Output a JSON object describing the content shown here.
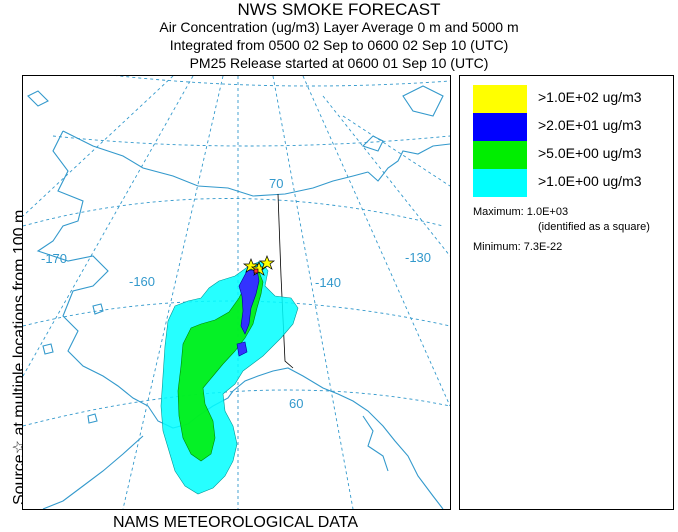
{
  "header": {
    "title": "NWS SMOKE FORECAST",
    "line2": "Air Concentration (ug/m3) Layer Average    0 m and  5000 m",
    "line3": "Integrated from 0500 02 Sep to 0600 02 Sep 10 (UTC)",
    "line4": "PM25 Release started at 0600 01 Sep 10 (UTC)"
  },
  "side_label": "Source☆ at multiple locations    from   100 m",
  "footer": "NAMS METEOROLOGICAL DATA",
  "map": {
    "longitude_labels": [
      "-170",
      "-160",
      "-140",
      "-130"
    ],
    "latitude_labels": [
      "70",
      "60"
    ],
    "colors": {
      "graticule": "#3399cc",
      "coast": "#3399cc",
      "border": "#000000"
    }
  },
  "legend": {
    "entries": [
      {
        "label": ">1.0E+02 ug/m3",
        "color": "#ffff00"
      },
      {
        "label": ">2.0E+01 ug/m3",
        "color": "#0000ff"
      },
      {
        "label": ">5.0E+00 ug/m3",
        "color": "#00ee00"
      },
      {
        "label": ">1.0E+00 ug/m3",
        "color": "#00ffff"
      }
    ],
    "maximum": "Maximum: 1.0E+03",
    "maximum_note": "(identified as a square)",
    "minimum": "Minimum: 7.3E-22"
  }
}
